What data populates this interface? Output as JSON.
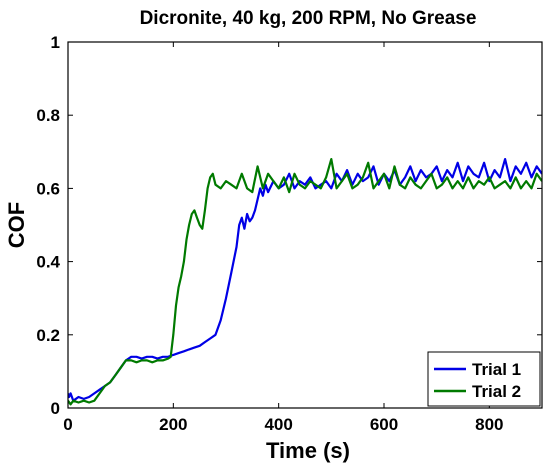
{
  "chart_data": {
    "type": "line",
    "title": "Dicronite, 40 kg, 200 RPM, No Grease",
    "xlabel": "Time (s)",
    "ylabel": "COF",
    "xlim": [
      0,
      900
    ],
    "ylim": [
      0,
      1
    ],
    "xticks": [
      0,
      200,
      400,
      600,
      800
    ],
    "xtick_labels": [
      "0",
      "200",
      "400",
      "600",
      "800"
    ],
    "yticks": [
      0,
      0.2,
      0.4,
      0.6,
      0.8,
      1
    ],
    "ytick_labels": [
      "0",
      "0.2",
      "0.4",
      "0.6",
      "0.8",
      "1"
    ],
    "grid": false,
    "legend_position": "bottom-right",
    "series": [
      {
        "name": "Trial 1",
        "color": "#0000e6",
        "x": [
          0,
          2,
          5,
          10,
          20,
          30,
          40,
          50,
          60,
          70,
          80,
          90,
          100,
          110,
          120,
          130,
          140,
          150,
          160,
          170,
          180,
          190,
          200,
          210,
          220,
          230,
          240,
          250,
          260,
          270,
          280,
          290,
          300,
          310,
          320,
          325,
          330,
          335,
          340,
          345,
          350,
          355,
          360,
          365,
          370,
          375,
          380,
          390,
          400,
          410,
          420,
          430,
          440,
          450,
          460,
          470,
          480,
          490,
          500,
          510,
          520,
          530,
          540,
          550,
          560,
          570,
          580,
          590,
          600,
          610,
          620,
          630,
          640,
          650,
          660,
          670,
          680,
          690,
          700,
          710,
          720,
          730,
          740,
          750,
          760,
          770,
          780,
          790,
          800,
          810,
          820,
          830,
          840,
          850,
          860,
          870,
          880,
          890,
          900
        ],
        "y": [
          0.04,
          0.03,
          0.04,
          0.02,
          0.03,
          0.025,
          0.03,
          0.04,
          0.05,
          0.06,
          0.07,
          0.09,
          0.11,
          0.13,
          0.14,
          0.14,
          0.135,
          0.14,
          0.14,
          0.135,
          0.14,
          0.14,
          0.145,
          0.15,
          0.155,
          0.16,
          0.165,
          0.17,
          0.18,
          0.19,
          0.2,
          0.24,
          0.3,
          0.37,
          0.44,
          0.5,
          0.52,
          0.49,
          0.53,
          0.51,
          0.52,
          0.54,
          0.57,
          0.6,
          0.58,
          0.61,
          0.59,
          0.62,
          0.6,
          0.61,
          0.64,
          0.6,
          0.62,
          0.61,
          0.63,
          0.6,
          0.61,
          0.62,
          0.6,
          0.64,
          0.62,
          0.65,
          0.61,
          0.64,
          0.62,
          0.63,
          0.66,
          0.61,
          0.64,
          0.62,
          0.65,
          0.61,
          0.63,
          0.66,
          0.62,
          0.65,
          0.63,
          0.64,
          0.66,
          0.62,
          0.65,
          0.63,
          0.67,
          0.62,
          0.66,
          0.64,
          0.63,
          0.67,
          0.62,
          0.65,
          0.63,
          0.68,
          0.62,
          0.66,
          0.64,
          0.67,
          0.63,
          0.66,
          0.64
        ]
      },
      {
        "name": "Trial 2",
        "color": "#007a00",
        "x": [
          0,
          5,
          10,
          20,
          30,
          40,
          50,
          60,
          70,
          80,
          90,
          100,
          110,
          120,
          130,
          140,
          150,
          160,
          170,
          180,
          190,
          195,
          200,
          205,
          210,
          215,
          220,
          225,
          230,
          235,
          240,
          245,
          250,
          255,
          260,
          265,
          270,
          275,
          280,
          290,
          300,
          310,
          320,
          330,
          340,
          350,
          360,
          370,
          380,
          390,
          400,
          410,
          420,
          430,
          440,
          450,
          460,
          470,
          480,
          490,
          500,
          510,
          520,
          530,
          540,
          550,
          560,
          570,
          580,
          590,
          600,
          610,
          620,
          630,
          640,
          650,
          660,
          670,
          680,
          690,
          700,
          710,
          720,
          730,
          740,
          750,
          760,
          770,
          780,
          790,
          800,
          810,
          820,
          830,
          840,
          850,
          860,
          870,
          880,
          890,
          900
        ],
        "y": [
          0.02,
          0.01,
          0.02,
          0.015,
          0.02,
          0.015,
          0.02,
          0.04,
          0.06,
          0.07,
          0.09,
          0.11,
          0.13,
          0.13,
          0.125,
          0.13,
          0.13,
          0.125,
          0.13,
          0.13,
          0.135,
          0.14,
          0.2,
          0.28,
          0.33,
          0.36,
          0.4,
          0.46,
          0.5,
          0.53,
          0.54,
          0.52,
          0.5,
          0.49,
          0.54,
          0.6,
          0.63,
          0.64,
          0.61,
          0.6,
          0.62,
          0.61,
          0.6,
          0.64,
          0.6,
          0.59,
          0.66,
          0.6,
          0.64,
          0.62,
          0.6,
          0.63,
          0.59,
          0.64,
          0.61,
          0.6,
          0.62,
          0.61,
          0.6,
          0.63,
          0.68,
          0.6,
          0.62,
          0.64,
          0.6,
          0.61,
          0.63,
          0.67,
          0.6,
          0.62,
          0.64,
          0.6,
          0.66,
          0.61,
          0.6,
          0.63,
          0.61,
          0.6,
          0.62,
          0.64,
          0.6,
          0.61,
          0.63,
          0.6,
          0.62,
          0.6,
          0.63,
          0.6,
          0.62,
          0.61,
          0.63,
          0.6,
          0.61,
          0.62,
          0.6,
          0.63,
          0.6,
          0.62,
          0.6,
          0.64,
          0.62
        ]
      }
    ]
  }
}
